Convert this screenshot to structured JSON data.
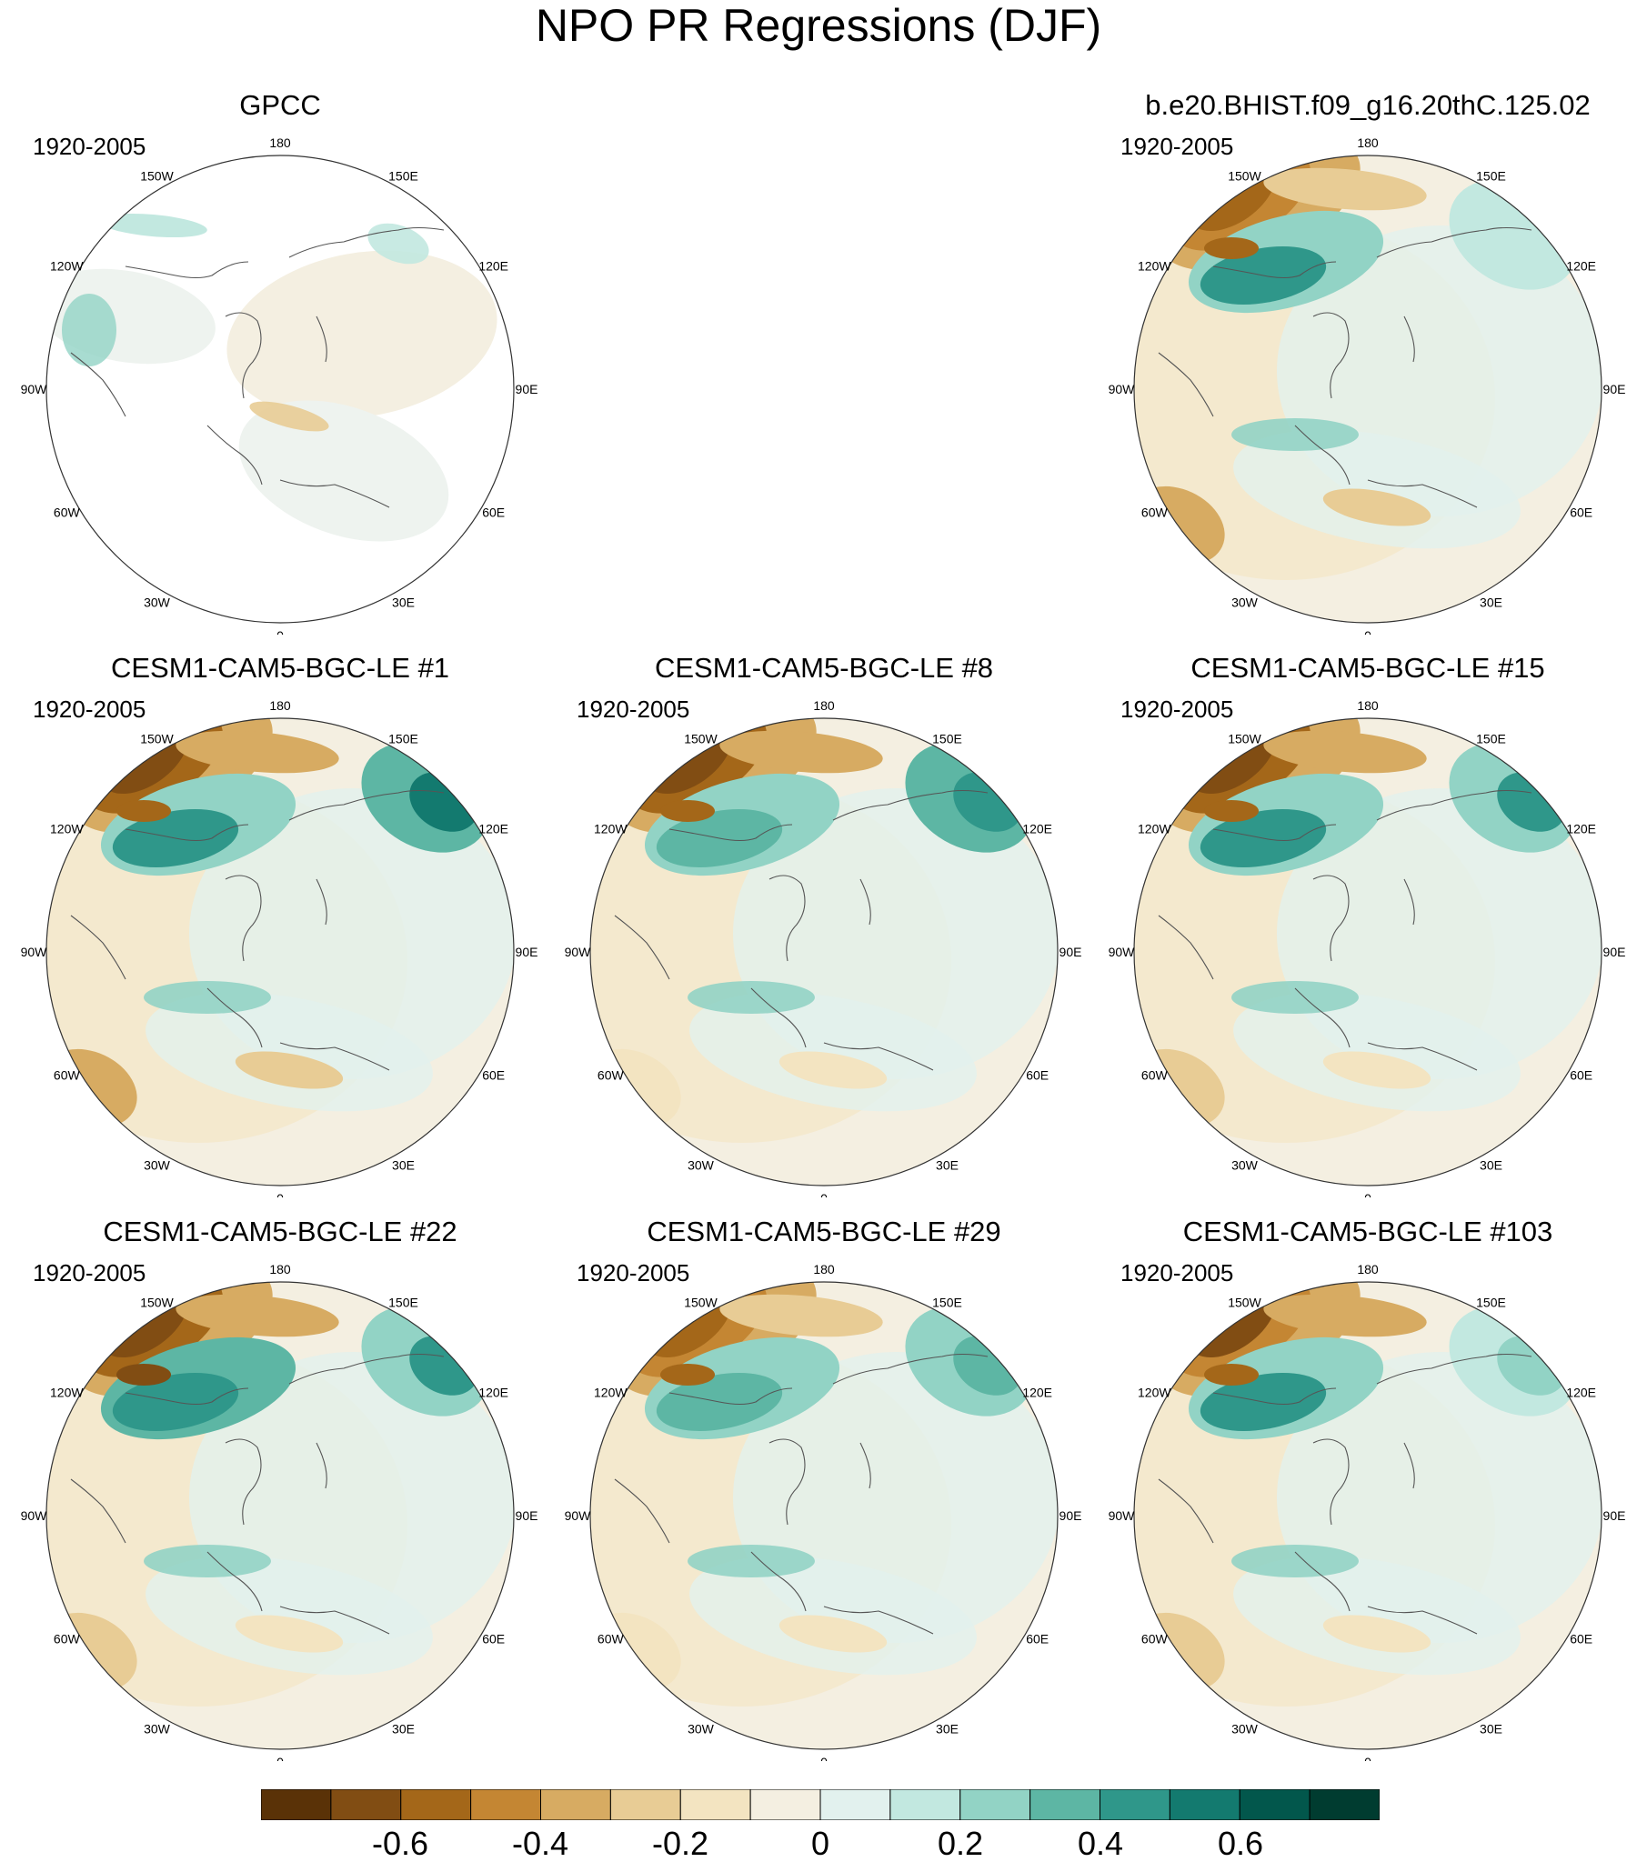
{
  "title": "NPO PR Regressions (DJF)",
  "period": "1920-2005",
  "longitude_labels": [
    "180",
    "150E",
    "120E",
    "90E",
    "60E",
    "30E",
    "0",
    "30W",
    "60W",
    "90W",
    "120W",
    "150W"
  ],
  "panels": [
    {
      "id": "gpcc",
      "title": "GPCC",
      "observed": true,
      "aleutian_dry": 0.1,
      "pacific_wet": 0.3,
      "asia_wet": 0.2,
      "atlantic_dry": 0.1
    },
    {
      "id": "bhist",
      "title": "b.e20.BHIST.f09_g16.20thC.125.02",
      "observed": false,
      "aleutian_dry": 0.75,
      "pacific_wet": 0.5,
      "asia_wet": 0.2,
      "atlantic_dry": 0.4
    },
    {
      "id": "le1",
      "title": "CESM1-CAM5-BGC-LE #1",
      "observed": false,
      "aleutian_dry": 0.85,
      "pacific_wet": 0.5,
      "asia_wet": 0.7,
      "atlantic_dry": 0.45
    },
    {
      "id": "le8",
      "title": "CESM1-CAM5-BGC-LE #8",
      "observed": false,
      "aleutian_dry": 0.85,
      "pacific_wet": 0.45,
      "asia_wet": 0.6,
      "atlantic_dry": 0.2
    },
    {
      "id": "le15",
      "title": "CESM1-CAM5-BGC-LE #15",
      "observed": false,
      "aleutian_dry": 0.85,
      "pacific_wet": 0.55,
      "asia_wet": 0.55,
      "atlantic_dry": 0.25
    },
    {
      "id": "le22",
      "title": "CESM1-CAM5-BGC-LE #22",
      "observed": false,
      "aleutian_dry": 0.9,
      "pacific_wet": 0.6,
      "asia_wet": 0.5,
      "atlantic_dry": 0.35
    },
    {
      "id": "le29",
      "title": "CESM1-CAM5-BGC-LE #29",
      "observed": false,
      "aleutian_dry": 0.75,
      "pacific_wet": 0.4,
      "asia_wet": 0.45,
      "atlantic_dry": 0.2
    },
    {
      "id": "le103",
      "title": "CESM1-CAM5-BGC-LE #103",
      "observed": false,
      "aleutian_dry": 0.8,
      "pacific_wet": 0.5,
      "asia_wet": 0.35,
      "atlantic_dry": 0.3
    }
  ],
  "colorbar": {
    "colors": [
      "#5a3207",
      "#814d13",
      "#a46719",
      "#c48633",
      "#d7ab62",
      "#e8cc95",
      "#f3e4c1",
      "#f4efe1",
      "#e2f1ee",
      "#c2e8e0",
      "#92d3c5",
      "#5db6a4",
      "#2f978a",
      "#137a6f",
      "#02574c",
      "#003c30"
    ],
    "labels": [
      "-0.6",
      "-0.4",
      "-0.2",
      "0",
      "0.2",
      "0.4",
      "0.6"
    ]
  }
}
